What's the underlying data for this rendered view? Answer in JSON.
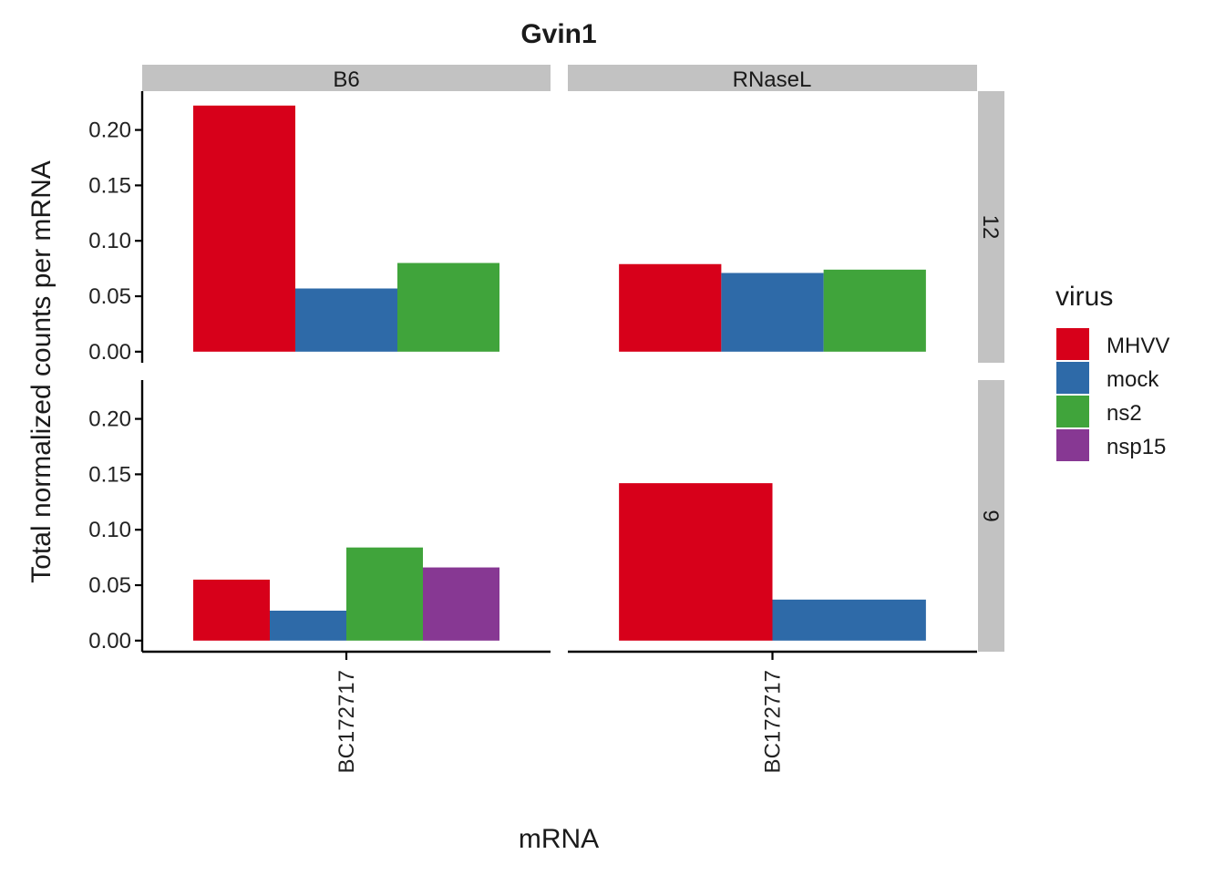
{
  "chart_data": {
    "type": "bar",
    "title": "Gvin1",
    "xlabel": "mRNA",
    "ylabel": "Total normalized counts per mRNA",
    "ylim": [
      -0.01,
      0.235
    ],
    "yticks": [
      "0.00",
      "0.05",
      "0.10",
      "0.15",
      "0.20"
    ],
    "ytick_values": [
      0,
      0.05,
      0.1,
      0.15,
      0.2
    ],
    "legend": {
      "title": "virus",
      "position": "right",
      "items": [
        {
          "name": "MHVV",
          "color": "#d7001a"
        },
        {
          "name": "mock",
          "color": "#2e6aa8"
        },
        {
          "name": "ns2",
          "color": "#40a43b"
        },
        {
          "name": "nsp15",
          "color": "#873893"
        }
      ]
    },
    "facet_columns": [
      "B6",
      "RNaseL"
    ],
    "facet_rows": [
      "12",
      "9"
    ],
    "panels": [
      {
        "col": "B6",
        "row": "12",
        "category": "BC172717",
        "series": [
          {
            "name": "MHVV",
            "value": 0.222
          },
          {
            "name": "mock",
            "value": 0.057
          },
          {
            "name": "ns2",
            "value": 0.08
          }
        ]
      },
      {
        "col": "RNaseL",
        "row": "12",
        "category": "BC172717",
        "series": [
          {
            "name": "MHVV",
            "value": 0.079
          },
          {
            "name": "mock",
            "value": 0.071
          },
          {
            "name": "ns2",
            "value": 0.074
          }
        ]
      },
      {
        "col": "B6",
        "row": "9",
        "category": "BC172717",
        "series": [
          {
            "name": "MHVV",
            "value": 0.055
          },
          {
            "name": "mock",
            "value": 0.027
          },
          {
            "name": "ns2",
            "value": 0.084
          },
          {
            "name": "nsp15",
            "value": 0.066
          }
        ]
      },
      {
        "col": "RNaseL",
        "row": "9",
        "category": "BC172717",
        "series": [
          {
            "name": "MHVV",
            "value": 0.142
          },
          {
            "name": "mock",
            "value": 0.037
          }
        ]
      }
    ]
  }
}
